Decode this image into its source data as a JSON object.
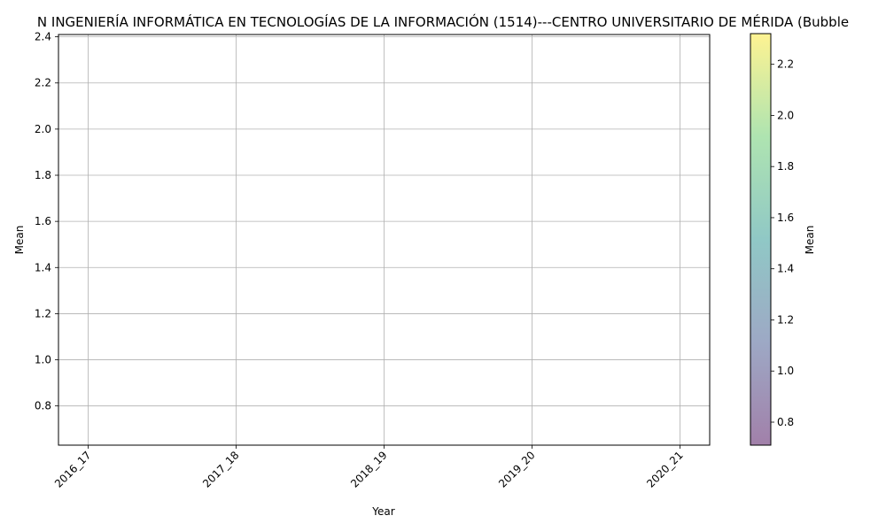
{
  "chart_data": {
    "type": "scatter",
    "title": "N INGENIERÍA INFORMÁTICA EN TECNOLOGÍAS DE LA INFORMACIÓN (1514)---CENTRO UNIVERSITARIO DE MÉRIDA (Bubble",
    "xlabel": "Year",
    "ylabel": "Mean",
    "categories": [
      "2016_17",
      "2017_18",
      "2018_19",
      "2019_20",
      "2020_21"
    ],
    "xlim": [
      -0.2,
      4.2
    ],
    "ylim": [
      0.63,
      2.41
    ],
    "yticks": [
      "0.8",
      "1.0",
      "1.2",
      "1.4",
      "1.6",
      "1.8",
      "2.0",
      "2.2",
      "2.4"
    ],
    "grid": true,
    "points": [],
    "colorbar": {
      "label": "Mean",
      "range": [
        0.71,
        2.32
      ],
      "ticks": [
        "0.8",
        "1.0",
        "1.2",
        "1.4",
        "1.6",
        "1.8",
        "2.0",
        "2.2"
      ],
      "colormap": "viridis",
      "alpha": 0.5
    }
  }
}
